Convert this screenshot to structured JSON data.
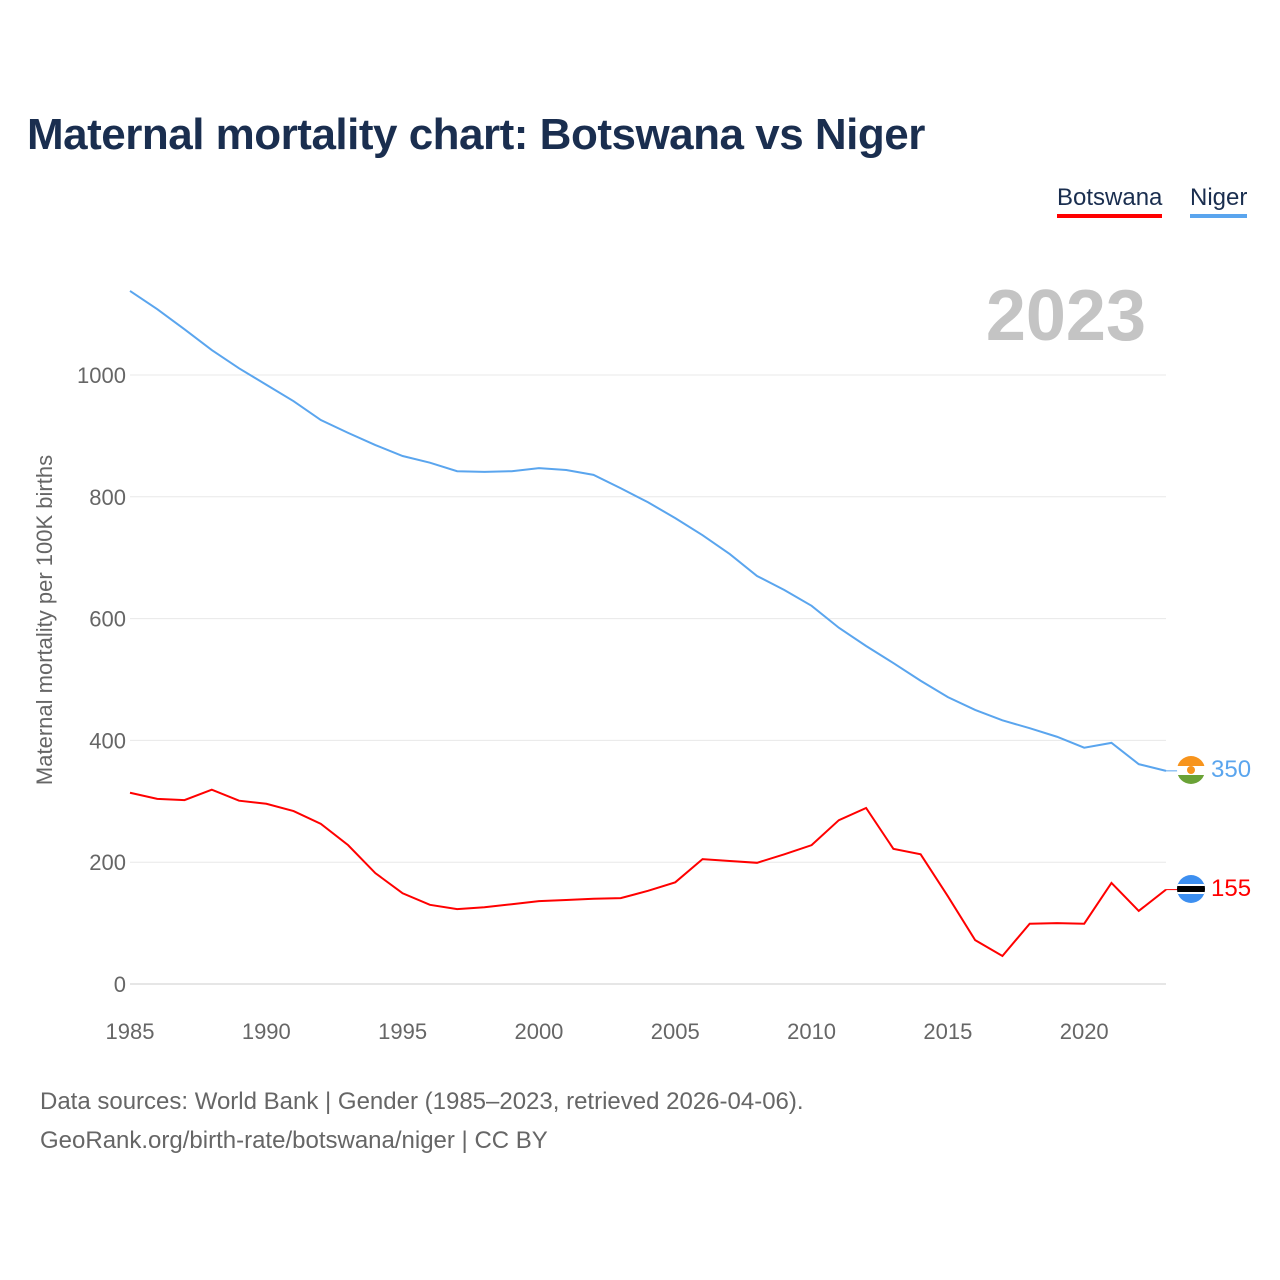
{
  "title": "Maternal mortality chart: Botswana vs Niger",
  "legend": [
    {
      "label": "Botswana",
      "color": "#ff0000"
    },
    {
      "label": "Niger",
      "color": "#5aa5ee"
    }
  ],
  "year_label": "2023",
  "source_line1": "Data sources: World Bank | Gender (1985–2023, retrieved 2026-04-06).",
  "source_line2": "GeoRank.org/birth-rate/botswana/niger | CC BY",
  "chart_data": {
    "type": "line",
    "title": "Maternal mortality chart: Botswana vs Niger",
    "xlabel": "",
    "ylabel": "Maternal mortality per 100K births",
    "xlim": [
      1985,
      2023
    ],
    "ylim": [
      0,
      1150
    ],
    "xticks": [
      1985,
      1990,
      1995,
      2000,
      2005,
      2010,
      2015,
      2020
    ],
    "yticks": [
      0,
      200,
      400,
      600,
      800,
      1000
    ],
    "grid": true,
    "legend_position": "top-right",
    "x": [
      1985,
      1986,
      1987,
      1988,
      1989,
      1990,
      1991,
      1992,
      1993,
      1994,
      1995,
      1996,
      1997,
      1998,
      1999,
      2000,
      2001,
      2002,
      2003,
      2004,
      2005,
      2006,
      2007,
      2008,
      2009,
      2010,
      2011,
      2012,
      2013,
      2014,
      2015,
      2016,
      2017,
      2018,
      2019,
      2020,
      2021,
      2022,
      2023
    ],
    "series": [
      {
        "name": "Botswana",
        "color": "#ff0000",
        "end_label": "155",
        "values": [
          314,
          304,
          302,
          319,
          301,
          296,
          284,
          263,
          228,
          182,
          149,
          130,
          123,
          126,
          131,
          136,
          138,
          140,
          141,
          153,
          167,
          205,
          202,
          199,
          213,
          228,
          269,
          289,
          222,
          213,
          144,
          72,
          46,
          99,
          100,
          99,
          166,
          120,
          155
        ]
      },
      {
        "name": "Niger",
        "color": "#5aa5ee",
        "end_label": "350",
        "values": [
          1138,
          1108,
          1075,
          1041,
          1011,
          984,
          957,
          926,
          905,
          885,
          867,
          856,
          842,
          841,
          842,
          847,
          844,
          836,
          814,
          791,
          765,
          737,
          706,
          670,
          647,
          621,
          585,
          555,
          527,
          498,
          471,
          450,
          433,
          420,
          406,
          388,
          396,
          361,
          350
        ]
      }
    ]
  }
}
